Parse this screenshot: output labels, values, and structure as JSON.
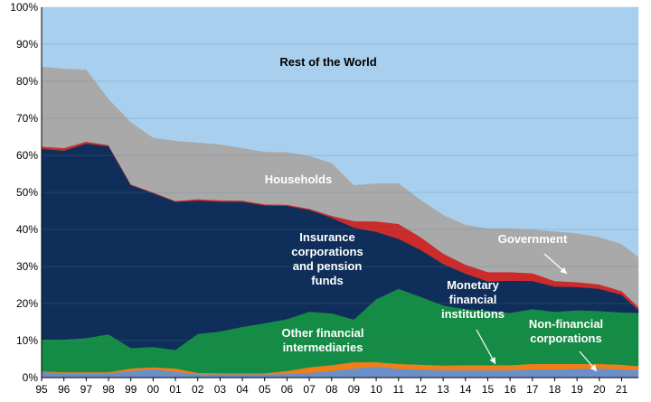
{
  "chart_data": {
    "type": "area",
    "stacked": true,
    "percent": true,
    "title": "",
    "xlabel": "",
    "ylabel": "",
    "ylim": [
      0,
      100
    ],
    "yticks": [
      "0%",
      "10%",
      "20%",
      "30%",
      "40%",
      "50%",
      "60%",
      "70%",
      "80%",
      "90%",
      "100%"
    ],
    "x": [
      1995,
      1996,
      1997,
      1998,
      1999,
      2000,
      2001,
      2002,
      2003,
      2004,
      2005,
      2006,
      2007,
      2008,
      2009,
      2010,
      2011,
      2012,
      2013,
      2014,
      2015,
      2016,
      2017,
      2018,
      2019,
      2020,
      2021,
      2021.75
    ],
    "xticks": [
      "95",
      "96",
      "97",
      "98",
      "99",
      "00",
      "01",
      "02",
      "03",
      "04",
      "05",
      "06",
      "07",
      "08",
      "09",
      "10",
      "11",
      "12",
      "13",
      "14",
      "15",
      "16",
      "17",
      "18",
      "19",
      "20",
      "21"
    ],
    "grid": "horizontal",
    "series": [
      {
        "name": "Non-financial corporations",
        "color": "#6b8fc9",
        "values": [
          1.5,
          1.2,
          1.2,
          1.2,
          1.8,
          2.3,
          1.6,
          0.9,
          0.9,
          0.9,
          0.9,
          1.0,
          1.3,
          1.8,
          2.5,
          3.0,
          2.4,
          2.2,
          2.0,
          2.0,
          2.0,
          2.0,
          2.2,
          2.2,
          2.4,
          2.5,
          2.2,
          2.1
        ]
      },
      {
        "name": "Other financial intermediaries (orange)",
        "color": "#f07f19",
        "values": [
          0.2,
          0.3,
          0.3,
          0.3,
          0.7,
          0.5,
          0.9,
          0.4,
          0.3,
          0.3,
          0.3,
          0.8,
          1.5,
          1.6,
          1.7,
          1.2,
          1.3,
          1.3,
          1.3,
          1.4,
          1.4,
          1.4,
          1.5,
          1.5,
          1.3,
          1.2,
          1.3,
          1.0
        ]
      },
      {
        "name": "Other financial intermediaries",
        "color": "#158c45",
        "values": [
          8.6,
          8.8,
          9.2,
          10.2,
          5.5,
          5.5,
          5.0,
          10.5,
          11.3,
          12.5,
          13.5,
          14.0,
          15.0,
          14.0,
          11.5,
          17.0,
          20.3,
          18.3,
          16.2,
          15.1,
          14.7,
          14.1,
          14.8,
          14.1,
          14.5,
          14.3,
          14.1,
          14.4
        ]
      },
      {
        "name": "Insurance corporations and pension funds",
        "color": "#0f2f5a",
        "values": [
          51.5,
          51.0,
          52.5,
          50.8,
          44.0,
          41.5,
          40.0,
          36.0,
          35.0,
          33.8,
          31.8,
          30.6,
          27.5,
          25.8,
          24.8,
          18.2,
          13.5,
          12.7,
          11.2,
          9.6,
          7.9,
          8.7,
          7.6,
          6.8,
          6.3,
          6.0,
          4.8,
          0.8
        ]
      },
      {
        "name": "Monetary financial institutions",
        "color": "#cc2b2b",
        "values": [
          0.6,
          0.7,
          0.5,
          0.3,
          0.2,
          0.2,
          0.2,
          0.4,
          0.4,
          0.3,
          0.3,
          0.3,
          0.3,
          0.5,
          1.8,
          2.8,
          4.0,
          3.4,
          2.8,
          2.4,
          2.5,
          2.3,
          2.1,
          1.5,
          1.3,
          1.2,
          1.0,
          0.8
        ]
      },
      {
        "name": "Households",
        "color": "#a9a9a9",
        "values": [
          21.6,
          21.5,
          19.5,
          12.5,
          16.8,
          14.8,
          16.3,
          15.3,
          15.1,
          14.2,
          14.2,
          14.2,
          14.3,
          14.3,
          9.7,
          10.3,
          11.0,
          10.1,
          10.5,
          10.8,
          11.8,
          11.8,
          11.8,
          13.4,
          13.2,
          12.8,
          12.7,
          13.5
        ]
      },
      {
        "name": "Rest of the World",
        "color": "#a8d0ee",
        "values": [
          16.0,
          16.5,
          16.8,
          24.7,
          31.0,
          35.2,
          36.0,
          36.5,
          37.0,
          38.0,
          39.0,
          39.1,
          40.1,
          42.0,
          48.0,
          47.5,
          47.5,
          52.0,
          56.0,
          58.7,
          59.7,
          59.7,
          60.0,
          60.5,
          61.0,
          62.0,
          63.9,
          67.4
        ]
      }
    ],
    "annotations": [
      {
        "text": "Rest of the World",
        "color": "#000000"
      },
      {
        "text": "Households",
        "color": "#ffffff"
      },
      {
        "text": "Government",
        "color": "#ffffff"
      },
      {
        "lines": [
          "Insurance",
          "corporations",
          "and pension",
          "funds"
        ],
        "color": "#ffffff"
      },
      {
        "lines": [
          "Monetary",
          "financial",
          "institutions"
        ],
        "color": "#ffffff"
      },
      {
        "lines": [
          "Other financial",
          "intermediaries"
        ],
        "color": "#ffffff"
      },
      {
        "lines": [
          "Non-financial",
          "corporations"
        ],
        "color": "#ffffff"
      }
    ]
  }
}
